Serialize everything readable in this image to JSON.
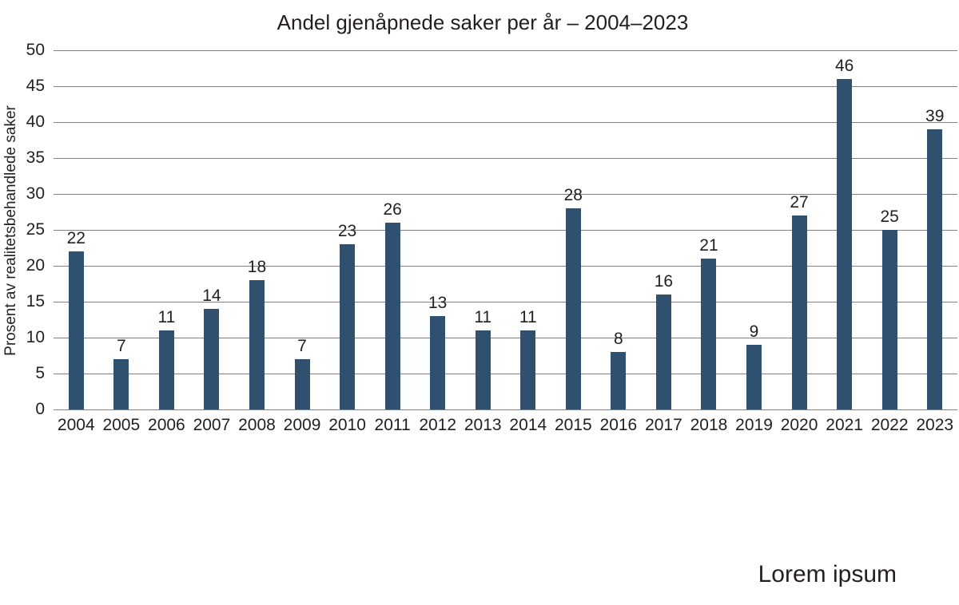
{
  "footer": {
    "label": "Lorem ipsum"
  },
  "chart_data": {
    "type": "bar",
    "title": "Andel gjenåpnede saker per år – 2004–2023",
    "xlabel": "",
    "ylabel": "Prosent av realitetsbehandlede saker",
    "categories": [
      "2004",
      "2005",
      "2006",
      "2007",
      "2008",
      "2009",
      "2010",
      "2011",
      "2012",
      "2013",
      "2014",
      "2015",
      "2016",
      "2017",
      "2018",
      "2019",
      "2020",
      "2021",
      "2022",
      "2023"
    ],
    "values": [
      22,
      7,
      11,
      14,
      18,
      7,
      23,
      26,
      13,
      11,
      11,
      28,
      8,
      16,
      21,
      9,
      27,
      46,
      25,
      39
    ],
    "ylim": [
      0,
      50
    ],
    "ytick_step": 5,
    "grid": "horizontal",
    "legend": "none",
    "bar_color": "#2f506f",
    "gridline_color": "#7f8083",
    "text_color": "#231f20",
    "background_color": "#ffffff"
  }
}
